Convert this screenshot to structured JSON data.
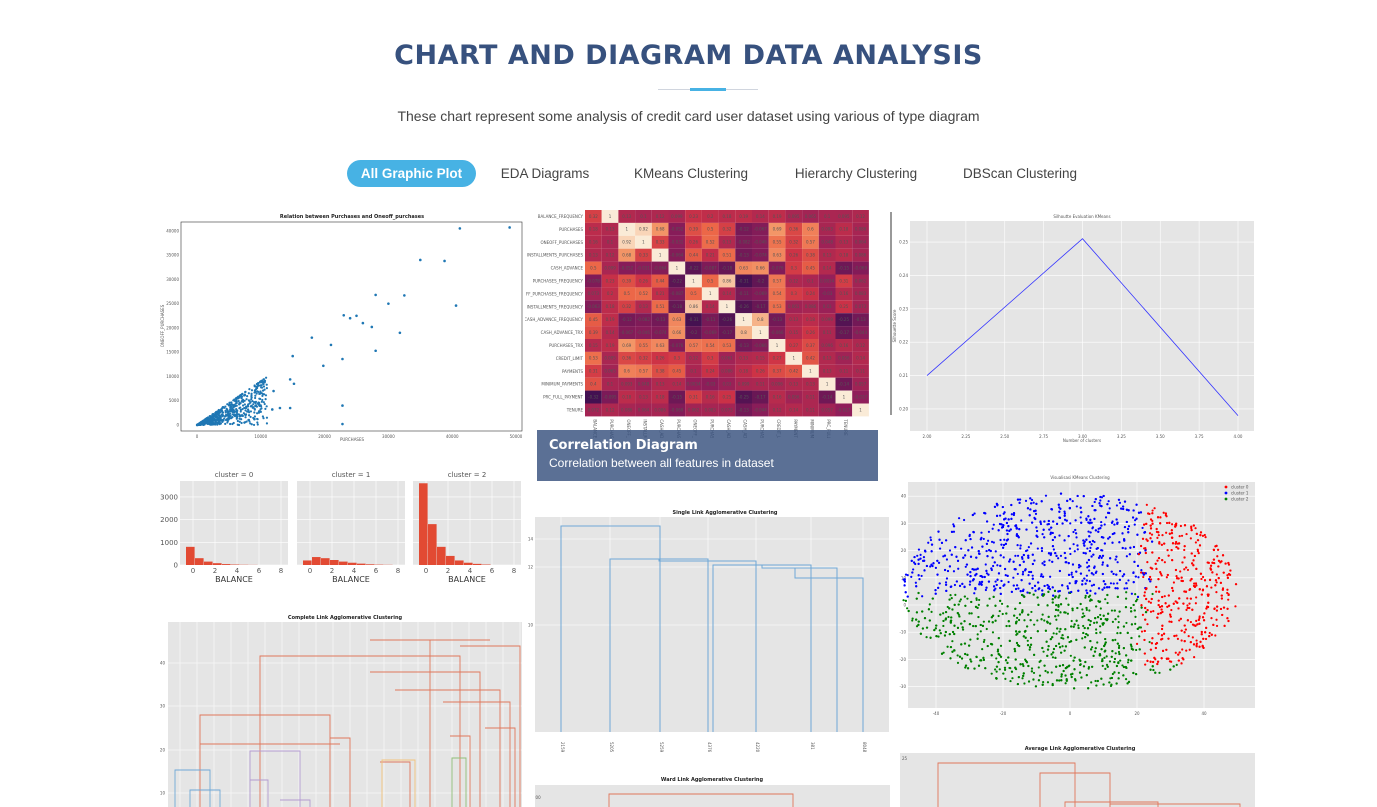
{
  "header": {
    "title": "CHART AND DIAGRAM DATA ANALYSIS",
    "subtitle": "These chart represent some analysis of credit card user dataset using various of type diagram"
  },
  "filters": [
    {
      "label": "All Graphic Plot",
      "active": true
    },
    {
      "label": "EDA Diagrams",
      "active": false
    },
    {
      "label": "KMeans Clustering",
      "active": false
    },
    {
      "label": "Hierarchy Clustering",
      "active": false
    },
    {
      "label": "DBScan Clustering",
      "active": false
    }
  ],
  "colors": {
    "title": "#37517e",
    "accent": "#47b2e4",
    "caption_bg": "#37517e"
  },
  "caption": {
    "title": "Correlation Diagram",
    "description": "Correlation between all features in dataset"
  },
  "chart_data": [
    {
      "type": "scatter",
      "title": "Relation between Purchases and Oneoff_purchases",
      "xlabel": "PURCHASES",
      "ylabel": "ONEOFF_PURCHASES",
      "x_ticks": [
        "0",
        "10000",
        "20000",
        "30000",
        "40000",
        "50000"
      ],
      "y_ticks": [
        "0",
        "5000",
        "10000",
        "15000",
        "20000",
        "25000",
        "30000",
        "35000",
        "40000"
      ],
      "xlim": [
        0,
        50000
      ],
      "ylim": [
        0,
        41000
      ],
      "points": [
        [
          49000,
          40700
        ],
        [
          41200,
          40500
        ],
        [
          35000,
          34000
        ],
        [
          38800,
          33800
        ],
        [
          40600,
          24600
        ],
        [
          32500,
          26700
        ],
        [
          30000,
          25000
        ],
        [
          28000,
          26800
        ],
        [
          31800,
          19000
        ],
        [
          27400,
          20200
        ],
        [
          28000,
          15300
        ],
        [
          23000,
          22600
        ],
        [
          22800,
          13600
        ],
        [
          22800,
          4000
        ],
        [
          22800,
          200
        ],
        [
          15000,
          14200
        ],
        [
          14600,
          9400
        ],
        [
          14600,
          3500
        ],
        [
          21000,
          16500
        ],
        [
          19800,
          12200
        ],
        [
          15200,
          8500
        ],
        [
          13000,
          3500
        ],
        [
          24000,
          22000
        ],
        [
          25000,
          22500
        ],
        [
          26000,
          21000
        ],
        [
          18000,
          18000
        ],
        [
          11800,
          3200
        ],
        [
          12000,
          7000
        ],
        [
          9000,
          1200
        ]
      ]
    },
    {
      "type": "heatmap",
      "rows": [
        "BALANCE_FREQUENCY",
        "PURCHASES",
        "ONEOFF_PURCHASES",
        "INSTALLMENTS_PURCHASES",
        "CASH_ADVANCE",
        "PURCHASES_FREQUENCY",
        "ONEOFF_PURCHASES_FREQUENCY",
        "PURCHASES_INSTALLMENTS_FREQUENCY",
        "CASH_ADVANCE_FREQUENCY",
        "CASH_ADVANCE_TRX",
        "PURCHASES_TRX",
        "CREDIT_LIMIT",
        "PAYMENTS",
        "MINIMUM_PAYMENTS",
        "PRC_FULL_PAYMENT",
        "TENURE"
      ],
      "row_labels": [
        "BALANCE_FREQUENCY",
        "PURCHASES",
        "ONEOFF_PURCHASES",
        "INSTALLMENTS_PURCHASES",
        "CASH_ADVANCE",
        "PURCHASES_FREQUENCY",
        "FF_PURCHASES_FREQUENCY",
        "INSTALLMENTS_FREQUENCY",
        "CASH_ADVANCE_FREQUENCY",
        "CASH_ADVANCE_TRX",
        "PURCHASES_TRX",
        "CREDIT_LIMIT",
        "PAYMENTS",
        "MINIMUM_PAYMENTS",
        "PRC_FULL_PAYMENT",
        "TENURE"
      ],
      "values": [
        [
          0.32,
          1,
          0.13,
          0.1,
          0.12,
          0.099,
          0.23,
          0.2,
          0.18,
          0.19,
          0.14,
          0.19,
          0.095,
          0.065,
          0.1,
          0.095,
          0.12
        ],
        [
          0.18,
          0.13,
          1,
          0.92,
          0.68,
          -0.052,
          0.39,
          0.5,
          0.32,
          -0.12,
          -0.067,
          0.69,
          0.36,
          0.6,
          0.093,
          0.18,
          0.086
        ],
        [
          0.16,
          0.1,
          0.92,
          1,
          0.33,
          -0.031,
          0.26,
          0.52,
          0.13,
          -0.082,
          -0.046,
          0.55,
          0.32,
          0.57,
          0.048,
          0.13,
          0.064
        ],
        [
          0.13,
          0.12,
          0.68,
          0.33,
          1,
          -0.064,
          0.44,
          0.21,
          0.51,
          -0.13,
          -0.074,
          0.63,
          0.26,
          0.38,
          0.13,
          0.18,
          0.086
        ],
        [
          0.5,
          0.099,
          -0.052,
          -0.031,
          -0.064,
          1,
          -0.22,
          -0.087,
          -0.18,
          0.63,
          0.66,
          -0.076,
          0.3,
          0.45,
          0.14,
          -0.15,
          -0.069
        ],
        [
          -0.078,
          0.23,
          0.39,
          0.26,
          0.44,
          -0.22,
          1,
          0.5,
          0.86,
          -0.31,
          -0.2,
          0.57,
          0.12,
          0.1,
          0.0034,
          0.31,
          0.062
        ],
        [
          0.073,
          0.2,
          0.5,
          0.52,
          0.21,
          -0.087,
          0.5,
          1,
          0.14,
          -0.11,
          -0.069,
          0.54,
          0.3,
          0.24,
          -0.03,
          0.16,
          0.083
        ],
        [
          -0.063,
          0.18,
          0.32,
          0.13,
          0.51,
          -0.18,
          0.86,
          0.14,
          1,
          -0.26,
          -0.17,
          0.53,
          0.061,
          0.086,
          0.03,
          0.25,
          0.073
        ],
        [
          0.45,
          0.19,
          -0.12,
          -0.082,
          -0.13,
          0.63,
          -0.31,
          -0.11,
          -0.26,
          1,
          0.8,
          -0.13,
          0.13,
          0.18,
          0.099,
          -0.25,
          -0.13
        ],
        [
          0.39,
          0.14,
          -0.067,
          -0.046,
          -0.074,
          0.66,
          -0.2,
          -0.069,
          -0.17,
          0.8,
          1,
          -0.066,
          0.15,
          0.26,
          0.11,
          -0.17,
          -0.044
        ],
        [
          0.15,
          0.19,
          0.69,
          0.55,
          0.63,
          -0.076,
          0.57,
          0.54,
          0.53,
          -0.13,
          -0.066,
          1,
          0.27,
          0.37,
          0.096,
          0.16,
          0.12
        ],
        [
          0.53,
          0.095,
          0.36,
          0.32,
          0.26,
          0.3,
          0.12,
          0.3,
          0.061,
          0.13,
          0.15,
          0.27,
          1,
          0.42,
          0.13,
          0.056,
          0.14
        ],
        [
          0.31,
          0.065,
          0.6,
          0.57,
          0.38,
          0.45,
          0.1,
          0.24,
          0.086,
          0.18,
          0.26,
          0.37,
          0.42,
          1,
          0.13,
          0.11,
          0.11
        ],
        [
          0.4,
          0.1,
          0.093,
          0.048,
          0.13,
          0.14,
          0.0034,
          -0.03,
          0.03,
          0.099,
          0.11,
          0.096,
          0.13,
          0.13,
          1,
          -0.14,
          0.057
        ],
        [
          -0.32,
          -0.095,
          0.18,
          0.13,
          0.18,
          -0.15,
          0.31,
          0.16,
          0.25,
          -0.25,
          -0.17,
          0.16,
          0.056,
          0.11,
          -0.14,
          1,
          -0.017
        ],
        [
          0.072,
          0.12,
          0.086,
          0.064,
          0.086,
          -0.069,
          0.062,
          0.083,
          0.073,
          -0.13,
          -0.044,
          0.12,
          0.14,
          0.11,
          0.057,
          -0.017,
          1
        ]
      ]
    },
    {
      "type": "line",
      "title": "Silhoutte Evaluation KMeans",
      "xlabel": "Number of clusters",
      "ylabel": "Silhouette Score",
      "x": [
        2,
        3,
        4
      ],
      "values": [
        0.21,
        0.251,
        0.198
      ],
      "x_ticks": [
        "2.00",
        "2.25",
        "2.50",
        "2.75",
        "3.00",
        "3.25",
        "3.50",
        "3.75",
        "4.00"
      ],
      "y_ticks": [
        "0.20",
        "0.21",
        "0.22",
        "0.23",
        "0.24",
        "0.25"
      ],
      "xlim": [
        2,
        4
      ],
      "ylim": [
        0.197,
        0.253
      ]
    },
    {
      "type": "bar",
      "titles": [
        "cluster = 0",
        "cluster = 1",
        "cluster = 2"
      ],
      "xlabel": "BALANCE",
      "y_ticks": [
        "0",
        "1000",
        "2000",
        "3000"
      ],
      "x_ticks": [
        "0",
        "2",
        "4",
        "6",
        "8"
      ],
      "ylim": [
        0,
        3700
      ],
      "series": [
        {
          "values": [
            800,
            300,
            150,
            80,
            40,
            20,
            10,
            5
          ]
        },
        {
          "values": [
            200,
            350,
            300,
            220,
            150,
            100,
            60,
            30,
            15,
            8
          ]
        },
        {
          "values": [
            3600,
            1800,
            800,
            400,
            200,
            100,
            50,
            20
          ]
        }
      ]
    },
    {
      "type": "dendrogram",
      "title": "Single Link Agglomerative Clustering",
      "x_ticks": [
        "2159",
        "5205",
        "5259",
        "4376",
        "4220",
        "381",
        "8048"
      ],
      "y_ticks": [
        "10",
        "12",
        "14"
      ]
    },
    {
      "type": "scatter",
      "title": "Visualisasi KMeans Clustering",
      "legend": [
        "cluster 0",
        "cluster 1",
        "cluster 2"
      ],
      "colors": [
        "#ff0000",
        "#0000ff",
        "#008000"
      ],
      "x_ticks": [
        "-40",
        "-20",
        "0",
        "20",
        "40"
      ],
      "y_ticks": [
        "-30",
        "-20",
        "-10",
        "0",
        "10",
        "20",
        "30",
        "40"
      ]
    },
    {
      "type": "dendrogram",
      "title": "Complete Link Agglomerative Clustering",
      "y_ticks": [
        "10",
        "20",
        "30",
        "40"
      ]
    },
    {
      "type": "dendrogram",
      "title": "Ward Link Agglomerative Clustering",
      "y_ticks": [
        "200"
      ]
    },
    {
      "type": "dendrogram",
      "title": "Average Link Agglomerative Clustering",
      "y_ticks": [
        "25"
      ]
    }
  ]
}
